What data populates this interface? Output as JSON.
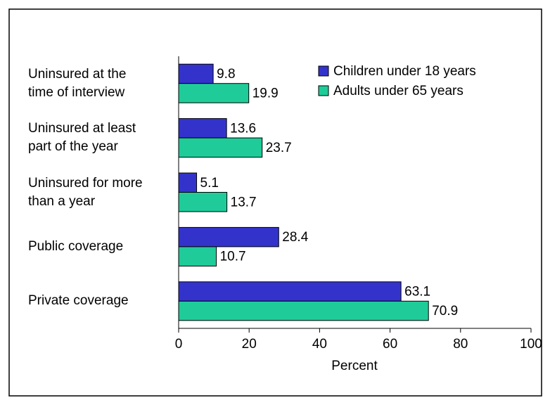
{
  "chart_data": {
    "type": "bar",
    "orientation": "horizontal",
    "categories": [
      "Uninsured at the\ntime of interview",
      "Uninsured at least\npart of the year",
      "Uninsured for more\nthan a year",
      "Public coverage",
      "Private coverage"
    ],
    "series": [
      {
        "name": "Children under 18 years",
        "color": "#3333cc",
        "values": [
          9.8,
          13.6,
          5.1,
          28.4,
          63.1
        ]
      },
      {
        "name": "Adults under 65 years",
        "color": "#1fcc99",
        "values": [
          19.9,
          23.7,
          13.7,
          10.7,
          70.9
        ]
      }
    ],
    "xlabel": "Percent",
    "xlim": [
      0,
      100
    ],
    "xticks": [
      0,
      20,
      40,
      60,
      80,
      100
    ],
    "grid": false,
    "legend": "upper right"
  }
}
